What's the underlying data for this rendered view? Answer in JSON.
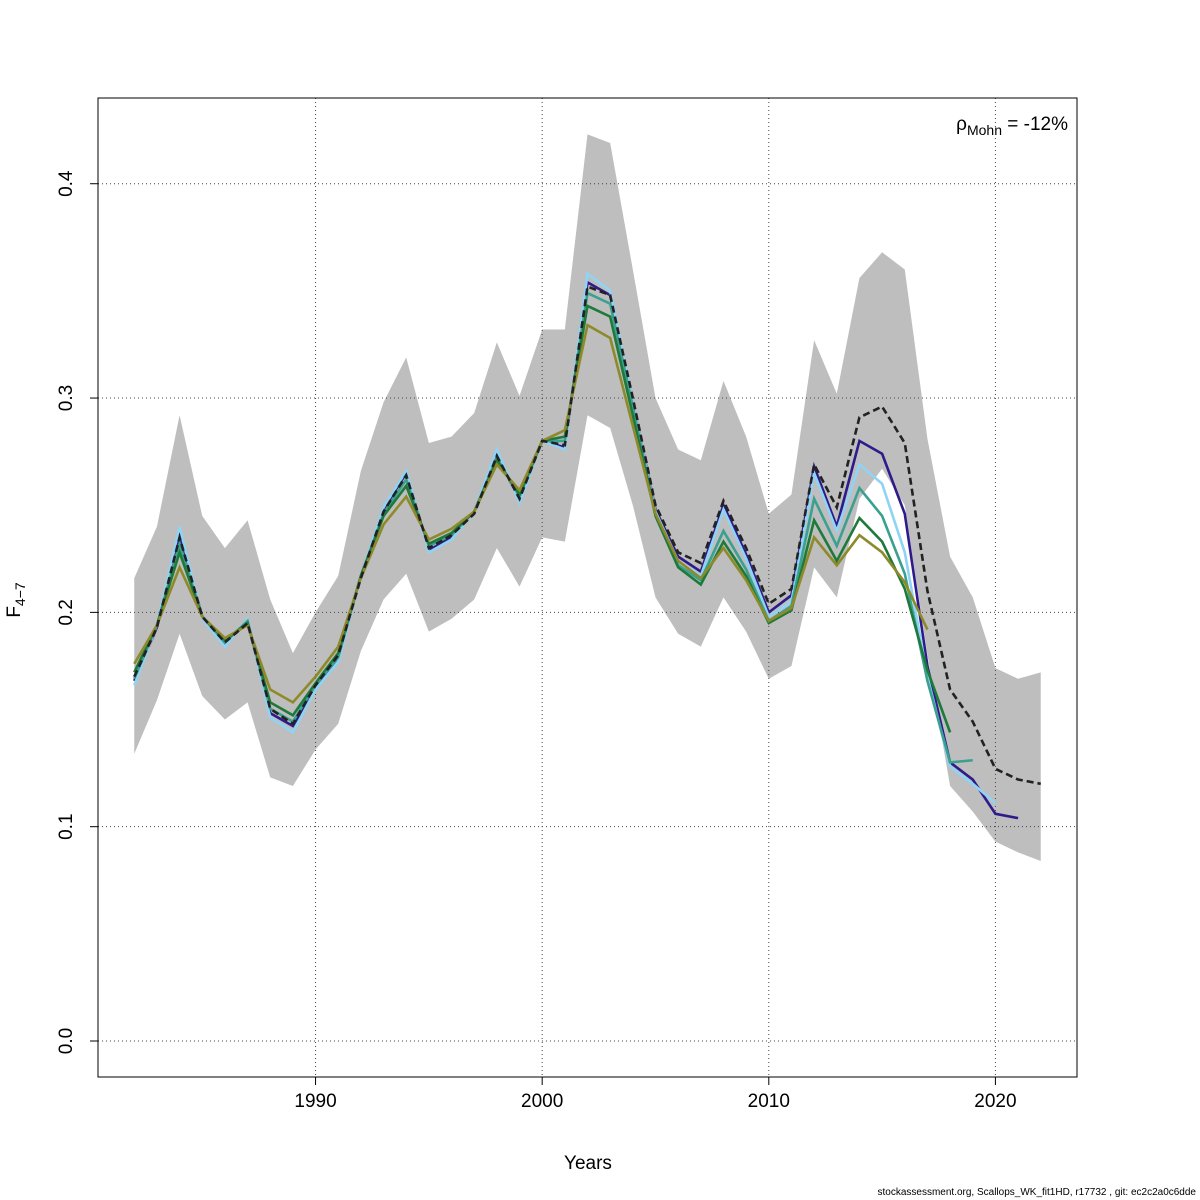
{
  "chart_data": {
    "type": "line",
    "xlabel": "Years",
    "ylabel": "F",
    "ylabel_sub": "4−7",
    "annotation": {
      "symbol": "ρ",
      "sub": "Mohn",
      "text": " = -12%"
    },
    "footer": "stockassessment.org, Scallops_WK_fit1HD, r17732 , git: ec2c2a0c6dde",
    "grid": true,
    "xlim": [
      1980.4,
      2023.6
    ],
    "ylim": [
      -0.0168,
      0.44
    ],
    "xticks": [
      1990,
      2000,
      2010,
      2020
    ],
    "yticks": [
      {
        "value": 0,
        "label": "0.0"
      },
      {
        "value": 0.1,
        "label": "0.1"
      },
      {
        "value": 0.2,
        "label": "0.2"
      },
      {
        "value": 0.3,
        "label": "0.3"
      },
      {
        "value": 0.4,
        "label": "0.4"
      }
    ],
    "x": [
      1982,
      1983,
      1984,
      1985,
      1986,
      1987,
      1988,
      1989,
      1990,
      1991,
      1992,
      1993,
      1994,
      1995,
      1996,
      1997,
      1998,
      1999,
      2000,
      2001,
      2002,
      2003,
      2004,
      2005,
      2006,
      2007,
      2008,
      2009,
      2010,
      2011,
      2012,
      2013,
      2014,
      2015,
      2016,
      2017,
      2018,
      2019,
      2020,
      2021,
      2022
    ],
    "band": {
      "color": "#bebebe",
      "upper": [
        0.216,
        0.24,
        0.292,
        0.245,
        0.23,
        0.243,
        0.206,
        0.181,
        0.2,
        0.217,
        0.266,
        0.298,
        0.319,
        0.279,
        0.282,
        0.293,
        0.326,
        0.301,
        0.332,
        0.332,
        0.423,
        0.419,
        0.36,
        0.3,
        0.276,
        0.271,
        0.308,
        0.282,
        0.246,
        0.255,
        0.327,
        0.302,
        0.356,
        0.368,
        0.36,
        0.281,
        0.226,
        0.207,
        0.174,
        0.169,
        0.172
      ],
      "lower": [
        0.134,
        0.159,
        0.19,
        0.161,
        0.15,
        0.158,
        0.123,
        0.119,
        0.136,
        0.148,
        0.182,
        0.206,
        0.218,
        0.191,
        0.197,
        0.206,
        0.23,
        0.212,
        0.235,
        0.233,
        0.292,
        0.286,
        0.25,
        0.207,
        0.19,
        0.184,
        0.207,
        0.191,
        0.169,
        0.175,
        0.221,
        0.207,
        0.253,
        0.267,
        0.25,
        0.18,
        0.119,
        0.107,
        0.093,
        0.088,
        0.084
      ]
    },
    "series": [
      {
        "color": "#2e1a8a",
        "values": [
          0.168,
          0.193,
          0.236,
          0.198,
          0.185,
          0.196,
          0.153,
          0.147,
          0.165,
          0.179,
          0.217,
          0.248,
          0.265,
          0.229,
          0.235,
          0.247,
          0.274,
          0.252,
          0.28,
          0.277,
          0.354,
          0.348,
          0.298,
          0.248,
          0.226,
          0.219,
          0.25,
          0.227,
          0.2,
          0.208,
          0.268,
          0.24,
          0.28,
          0.274,
          0.246,
          0.175,
          0.13,
          0.122,
          0.106,
          0.104,
          null
        ]
      },
      {
        "color": "#8fd3f5",
        "values": [
          0.166,
          0.194,
          0.24,
          0.197,
          0.184,
          0.197,
          0.151,
          0.144,
          0.164,
          0.177,
          0.217,
          0.249,
          0.266,
          0.228,
          0.234,
          0.247,
          0.276,
          0.251,
          0.28,
          0.276,
          0.358,
          0.35,
          0.298,
          0.247,
          0.224,
          0.217,
          0.248,
          0.225,
          0.198,
          0.205,
          0.265,
          0.238,
          0.269,
          0.26,
          0.228,
          0.17,
          0.128,
          0.12,
          0.111,
          null,
          null
        ]
      },
      {
        "color": "#3aa090",
        "values": [
          0.169,
          0.194,
          0.232,
          0.198,
          0.186,
          0.196,
          0.155,
          0.149,
          0.166,
          0.179,
          0.217,
          0.246,
          0.262,
          0.231,
          0.236,
          0.247,
          0.272,
          0.254,
          0.28,
          0.28,
          0.349,
          0.344,
          0.296,
          0.246,
          0.222,
          0.215,
          0.238,
          0.22,
          0.196,
          0.203,
          0.253,
          0.231,
          0.258,
          0.245,
          0.218,
          0.168,
          0.13,
          0.131,
          null,
          null,
          null
        ]
      },
      {
        "color": "#1e7a3a",
        "values": [
          0.172,
          0.194,
          0.228,
          0.198,
          0.187,
          0.195,
          0.158,
          0.152,
          0.167,
          0.181,
          0.217,
          0.245,
          0.259,
          0.232,
          0.237,
          0.247,
          0.271,
          0.255,
          0.28,
          0.282,
          0.343,
          0.338,
          0.292,
          0.245,
          0.221,
          0.213,
          0.233,
          0.217,
          0.195,
          0.201,
          0.243,
          0.224,
          0.244,
          0.233,
          0.211,
          0.173,
          0.144,
          null,
          null,
          null,
          null
        ]
      },
      {
        "color": "#8e8a2a",
        "values": [
          0.176,
          0.194,
          0.221,
          0.198,
          0.188,
          0.194,
          0.164,
          0.158,
          0.17,
          0.184,
          0.216,
          0.241,
          0.254,
          0.234,
          0.239,
          0.247,
          0.269,
          0.257,
          0.28,
          0.285,
          0.334,
          0.328,
          0.287,
          0.246,
          0.224,
          0.216,
          0.23,
          0.215,
          0.196,
          0.202,
          0.235,
          0.222,
          0.236,
          0.228,
          0.214,
          0.192,
          null,
          null,
          null,
          null,
          null
        ]
      },
      {
        "color": "#222222",
        "dashed": true,
        "values": [
          0.17,
          0.193,
          0.235,
          0.198,
          0.186,
          0.195,
          0.155,
          0.148,
          0.166,
          0.18,
          0.216,
          0.247,
          0.264,
          0.23,
          0.236,
          0.246,
          0.273,
          0.253,
          0.28,
          0.278,
          0.352,
          0.348,
          0.3,
          0.25,
          0.228,
          0.223,
          0.252,
          0.23,
          0.204,
          0.211,
          0.269,
          0.249,
          0.291,
          0.296,
          0.279,
          0.21,
          0.164,
          0.149,
          0.127,
          0.122,
          0.12
        ]
      }
    ]
  }
}
